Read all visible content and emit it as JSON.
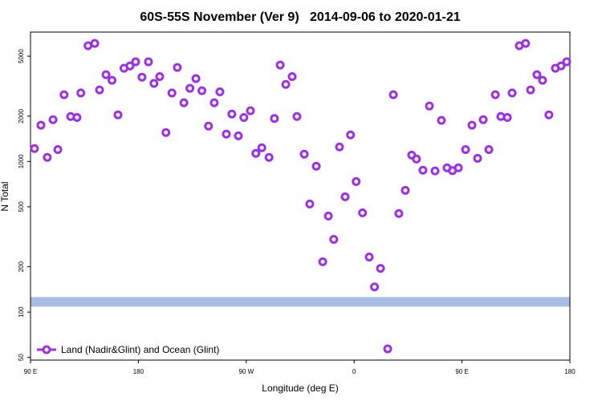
{
  "chart_data": {
    "type": "scatter",
    "title": "60S-55S November (Ver 9)   2014-09-06 to 2020-01-21",
    "xlabel": "Longitude (deg E)",
    "ylabel": "N Total",
    "log_y": true,
    "legend": "bottomleft",
    "xlim": [
      90,
      540
    ],
    "xticks": [
      {
        "value": 90,
        "label": "90 E"
      },
      {
        "value": 180,
        "label": "180"
      },
      {
        "value": 270,
        "label": "90 W"
      },
      {
        "value": 360,
        "label": "0"
      },
      {
        "value": 450,
        "label": "90 E"
      },
      {
        "value": 540,
        "label": "180"
      }
    ],
    "ylim": [
      48,
      7230
    ],
    "yticks": [
      50,
      100,
      200,
      500,
      1000,
      2000,
      5000
    ],
    "band": {
      "value": 117,
      "color": "#a7bde1"
    },
    "x": [
      93.3,
      98.7,
      104,
      108.8,
      112.8,
      118,
      123.5,
      128.8,
      132,
      138,
      143.6,
      147.6,
      153,
      158,
      163,
      168,
      173,
      177.7,
      183,
      188.4,
      193,
      197.8,
      203,
      208,
      212.5,
      218,
      223,
      228,
      233,
      238.5,
      243.3,
      248,
      253.4,
      258,
      263.4,
      268,
      273.5,
      278,
      283,
      289,
      293.5,
      298.3,
      303,
      308.3,
      312.3,
      318.4,
      323,
      328.4,
      333.8,
      338.5,
      343,
      347.8,
      352.5,
      357,
      361.7,
      367,
      372.6,
      377,
      382,
      388,
      392.7,
      397.3,
      402.7,
      408,
      412,
      417.4,
      422.8,
      427.5,
      432.8,
      437.5,
      442,
      447,
      453,
      458.3,
      463,
      467.7,
      472.4,
      477.8,
      482.4,
      487.8,
      491.8,
      497.8,
      503.1,
      507.2,
      512.5,
      517.2,
      522.5,
      527.9,
      532.6,
      537.3
    ],
    "series": [
      {
        "name": "Land (Nadir&Glint) and Ocean (Glint)",
        "color": "#9b30e8",
        "values": [
          1218,
          1740,
          1064,
          1895,
          1200,
          2775,
          1990,
          1960,
          2850,
          5870,
          6080,
          2985,
          3770,
          3460,
          2040,
          4160,
          4310,
          4590,
          3630,
          4590,
          3300,
          3660,
          1557,
          2850,
          4210,
          2455,
          3060,
          3550,
          2950,
          1718,
          2455,
          2900,
          1520,
          2065,
          1480,
          1960,
          2170,
          1132,
          1233,
          1064,
          1930,
          4370,
          3250,
          3660,
          1990,
          1118,
          522,
          930,
          216,
          434,
          304,
          1248,
          583,
          1500,
          736,
          456,
          232,
          147,
          195,
          57,
          2775,
          451,
          643,
          1103,
          1038,
          875,
          2335,
          865,
          1873,
          908,
          870,
          908,
          1200,
          1740,
          1050,
          1895,
          1200,
          2775,
          1990,
          1960,
          2850,
          5870,
          6080,
          2985,
          3770,
          3460,
          2040,
          4160,
          4310,
          4590
        ]
      }
    ]
  }
}
